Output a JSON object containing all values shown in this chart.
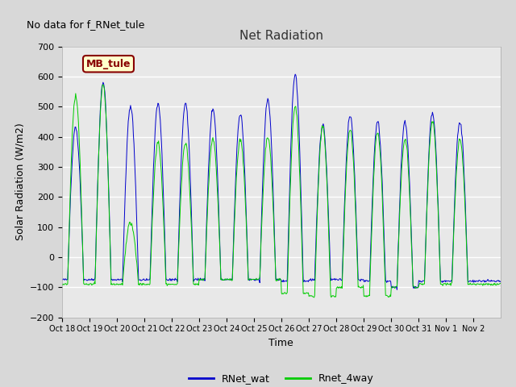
{
  "title": "Net Radiation",
  "xlabel": "Time",
  "ylabel": "Solar Radiation (W/m2)",
  "ylim": [
    -200,
    700
  ],
  "yticks": [
    -200,
    -100,
    0,
    100,
    200,
    300,
    400,
    500,
    600,
    700
  ],
  "xlim_start": 0,
  "xlim_end": 16,
  "xtick_labels": [
    "Oct 18",
    "Oct 19",
    "Oct 20",
    "Oct 21",
    "Oct 22",
    "Oct 23",
    "Oct 24",
    "Oct 25",
    "Oct 26",
    "Oct 27",
    "Oct 28",
    "Oct 29",
    "Oct 30",
    "Oct 31",
    "Nov 1",
    "Nov 2"
  ],
  "no_data_text": "No data for f_RNet_tule",
  "legend_label1": "RNet_wat",
  "legend_label2": "Rnet_4way",
  "color1": "#0000cc",
  "color2": "#00cc00",
  "annotation_text": "MB_tule",
  "annotation_bg": "#ffffcc",
  "annotation_border": "#880000",
  "fig_bg": "#d8d8d8",
  "plot_bg": "#e8e8e8",
  "grid_color": "white",
  "num_days": 16,
  "peak_blue_vals": [
    430,
    580,
    500,
    510,
    510,
    490,
    475,
    525,
    607,
    440,
    470,
    450,
    450,
    480,
    450,
    0
  ],
  "peak_green_vals": [
    535,
    575,
    115,
    380,
    380,
    390,
    390,
    400,
    500,
    430,
    420,
    415,
    390,
    450,
    390,
    0
  ],
  "night_blue": [
    -75,
    -75,
    -75,
    -75,
    -75,
    -75,
    -75,
    -75,
    -80,
    -75,
    -75,
    -80,
    -100,
    -80,
    -80,
    -80
  ],
  "night_green": [
    -90,
    -90,
    -90,
    -90,
    -90,
    -75,
    -75,
    -75,
    -120,
    -130,
    -100,
    -130,
    -100,
    -90,
    -90,
    -90
  ]
}
